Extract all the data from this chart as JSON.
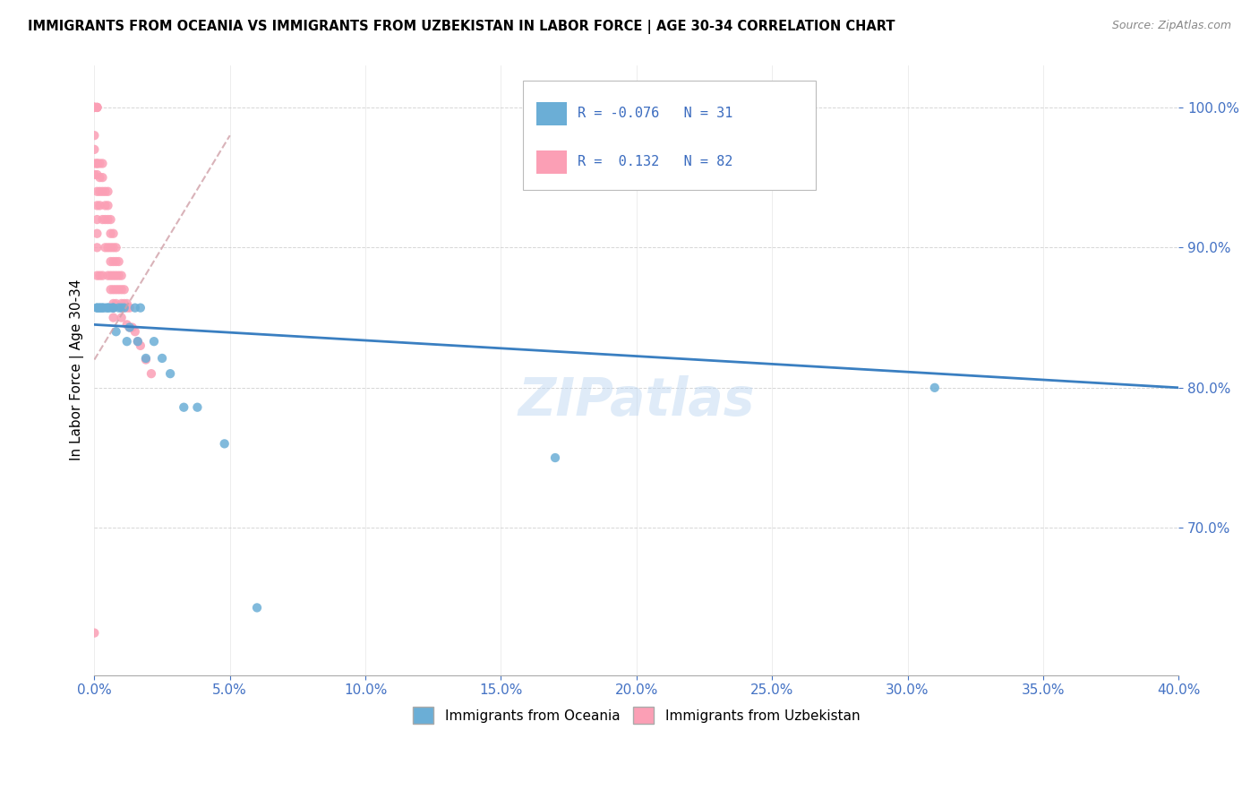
{
  "title": "IMMIGRANTS FROM OCEANIA VS IMMIGRANTS FROM UZBEKISTAN IN LABOR FORCE | AGE 30-34 CORRELATION CHART",
  "source": "Source: ZipAtlas.com",
  "legend_oceania": "Immigrants from Oceania",
  "legend_uzbekistan": "Immigrants from Uzbekistan",
  "R_oceania": "-0.076",
  "N_oceania": "31",
  "R_uzbekistan": "0.132",
  "N_uzbekistan": "82",
  "watermark": "ZIPatlas",
  "oceania_color": "#6baed6",
  "uzbekistan_color": "#fb9fb5",
  "trend_oceania_color": "#3a7fc1",
  "trend_uzbekistan_color": "#e07080",
  "xmin": 0.0,
  "xmax": 0.4,
  "ymin": 0.595,
  "ymax": 1.03,
  "yticks": [
    0.7,
    0.8,
    0.9,
    1.0
  ],
  "ytick_labels": [
    "70.0%",
    "80.0%",
    "90.0%",
    "100.0%"
  ],
  "xticks": [
    0.0,
    0.05,
    0.1,
    0.15,
    0.2,
    0.25,
    0.3,
    0.35,
    0.4
  ],
  "xtick_labels": [
    "0.0%",
    "5.0%",
    "10.0%",
    "15.0%",
    "20.0%",
    "25.0%",
    "30.0%",
    "35.0%",
    "40.0%"
  ],
  "oceania_x": [
    0.001,
    0.001,
    0.002,
    0.002,
    0.003,
    0.003,
    0.004,
    0.005,
    0.005,
    0.006,
    0.007,
    0.007,
    0.008,
    0.009,
    0.01,
    0.011,
    0.012,
    0.013,
    0.015,
    0.016,
    0.017,
    0.019,
    0.022,
    0.025,
    0.028,
    0.033,
    0.038,
    0.048,
    0.06,
    0.17,
    0.31
  ],
  "oceania_y": [
    0.857,
    0.857,
    0.857,
    0.857,
    0.857,
    0.857,
    0.857,
    0.857,
    0.857,
    0.857,
    0.857,
    0.857,
    0.84,
    0.857,
    0.857,
    0.857,
    0.833,
    0.843,
    0.857,
    0.833,
    0.857,
    0.821,
    0.833,
    0.821,
    0.81,
    0.786,
    0.786,
    0.76,
    0.643,
    0.75,
    0.8
  ],
  "uzbekistan_x": [
    0.0,
    0.0,
    0.0,
    0.0,
    0.0,
    0.0,
    0.0,
    0.0,
    0.0,
    0.0,
    0.0,
    0.001,
    0.001,
    0.001,
    0.001,
    0.001,
    0.001,
    0.001,
    0.001,
    0.001,
    0.001,
    0.001,
    0.001,
    0.002,
    0.002,
    0.002,
    0.002,
    0.002,
    0.003,
    0.003,
    0.003,
    0.003,
    0.003,
    0.004,
    0.004,
    0.004,
    0.004,
    0.005,
    0.005,
    0.005,
    0.005,
    0.005,
    0.006,
    0.006,
    0.006,
    0.006,
    0.006,
    0.006,
    0.007,
    0.007,
    0.007,
    0.007,
    0.007,
    0.007,
    0.007,
    0.007,
    0.008,
    0.008,
    0.008,
    0.008,
    0.008,
    0.009,
    0.009,
    0.009,
    0.01,
    0.01,
    0.01,
    0.01,
    0.01,
    0.011,
    0.011,
    0.012,
    0.012,
    0.012,
    0.013,
    0.013,
    0.014,
    0.015,
    0.016,
    0.017,
    0.019,
    0.021
  ],
  "uzbekistan_y": [
    1.0,
    1.0,
    1.0,
    1.0,
    1.0,
    1.0,
    0.98,
    0.97,
    0.96,
    0.952,
    0.625,
    1.0,
    1.0,
    1.0,
    0.96,
    0.96,
    0.952,
    0.94,
    0.93,
    0.92,
    0.91,
    0.9,
    0.88,
    0.96,
    0.95,
    0.94,
    0.93,
    0.88,
    0.96,
    0.95,
    0.94,
    0.92,
    0.88,
    0.94,
    0.93,
    0.92,
    0.9,
    0.94,
    0.93,
    0.92,
    0.9,
    0.88,
    0.92,
    0.91,
    0.9,
    0.89,
    0.88,
    0.87,
    0.91,
    0.9,
    0.89,
    0.88,
    0.87,
    0.86,
    0.857,
    0.85,
    0.9,
    0.89,
    0.88,
    0.87,
    0.86,
    0.89,
    0.88,
    0.87,
    0.88,
    0.87,
    0.86,
    0.857,
    0.85,
    0.87,
    0.86,
    0.86,
    0.857,
    0.845,
    0.857,
    0.843,
    0.843,
    0.84,
    0.833,
    0.83,
    0.82,
    0.81
  ]
}
